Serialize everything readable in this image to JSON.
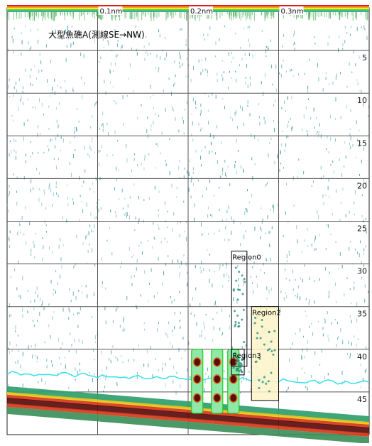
{
  "chart_data": {
    "type": "echogram",
    "title": "大型魚礁A(測線SE→NW)",
    "x_axis": {
      "unit": "nm",
      "range": [
        0.0,
        0.4
      ],
      "tick_labels": [
        "0.1nm",
        "0.2nm",
        "0.3nm"
      ],
      "ticks": [
        0.1,
        0.2,
        0.3
      ]
    },
    "y_axis": {
      "unit": "m",
      "range": [
        0,
        50
      ],
      "tick_values": [
        5,
        10,
        15,
        20,
        25,
        30,
        35,
        40,
        45
      ],
      "tick_labels": [
        "5",
        "10",
        "15",
        "20",
        "25",
        "30",
        "35",
        "40",
        "45"
      ],
      "inverted": true
    },
    "grid": true,
    "regions": [
      {
        "name": "Region0",
        "x_range": [
          0.248,
          0.265
        ],
        "depth_range": [
          28.5,
          42.0
        ]
      },
      {
        "name": "Region2",
        "x_range": [
          0.27,
          0.3
        ],
        "depth_range": [
          35.0,
          46.0
        ]
      },
      {
        "name": "Region3",
        "x_range": [
          0.248,
          0.262
        ],
        "depth_range": [
          40.0,
          43.0
        ]
      }
    ],
    "seabed_depth": {
      "x": [
        0.0,
        0.4
      ],
      "depth": [
        45.5,
        49.0
      ]
    },
    "colors": {
      "grid": "#555555",
      "scatter": "#2a8f9a",
      "seabed": "#5a0d0d",
      "secondary_echo": "#35e0e8",
      "region_outline": "#000000",
      "school_outline": "#22cc22",
      "region2_fill": "#fbf3c8"
    }
  }
}
